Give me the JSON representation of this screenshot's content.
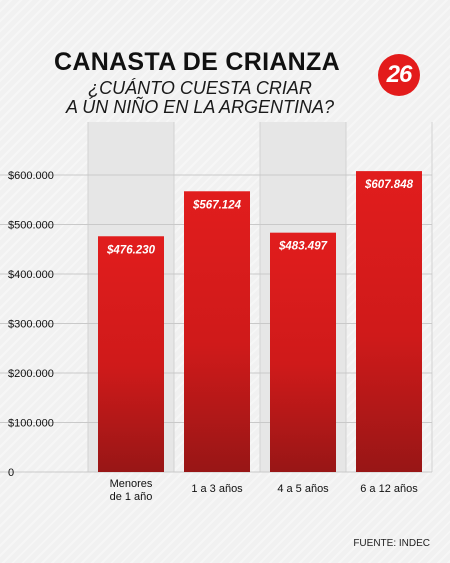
{
  "header": {
    "title": "CANASTA DE CRIANZA",
    "subtitle_line1": "¿CUÁNTO CUESTA CRIAR",
    "subtitle_line2": "A ÚN NIÑO EN LA ARGENTINA?",
    "logo_text": "26"
  },
  "footer": {
    "source": "FUENTE: INDEC"
  },
  "colors": {
    "bar": "#d61a1a",
    "bar_dark": "#8e1515",
    "logo": "#e31b1b",
    "band": "#e6e6e6"
  },
  "chart_data": {
    "type": "bar",
    "title": "CANASTA DE CRIANZA",
    "subtitle": "¿CUÁNTO CUESTA CRIAR A ÚN NIÑO EN LA ARGENTINA?",
    "categories": [
      "Menores de 1 año",
      "1 a 3 años",
      "4 a 5 años",
      "6 a 12 años"
    ],
    "category_lines": [
      [
        "Menores",
        "de 1 año"
      ],
      [
        "1 a 3 años"
      ],
      [
        "4 a 5 años"
      ],
      [
        "6 a 12 años"
      ]
    ],
    "values": [
      476230,
      567124,
      483497,
      607848
    ],
    "value_labels": [
      "$476.230",
      "$567.124",
      "$483.497",
      "$607.848"
    ],
    "ylim": [
      0,
      600000
    ],
    "yticks": [
      0,
      100000,
      200000,
      300000,
      400000,
      500000,
      600000
    ],
    "ytick_labels": [
      "0",
      "$100.000",
      "$200.000",
      "$300.000",
      "$400.000",
      "$500.000",
      "$600.000"
    ],
    "grid": true,
    "xlabel": "",
    "ylabel": "",
    "source": "FUENTE: INDEC"
  }
}
